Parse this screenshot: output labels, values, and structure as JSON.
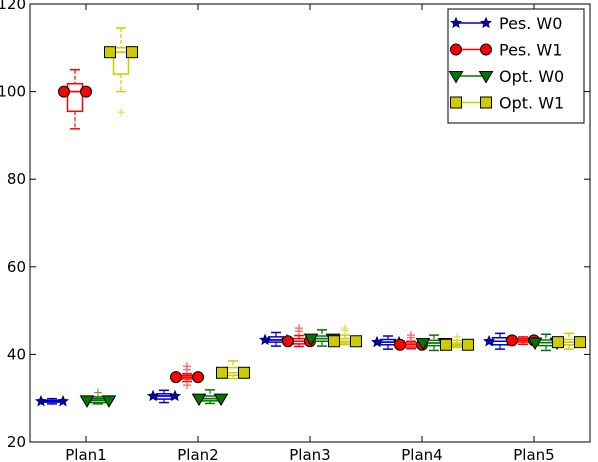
{
  "chart_data": {
    "type": "box",
    "categories": [
      "Plan1",
      "Plan2",
      "Plan3",
      "Plan4",
      "Plan5"
    ],
    "ylim": [
      20,
      120
    ],
    "yticks": [
      20,
      40,
      60,
      80,
      100,
      120
    ],
    "grid": false,
    "legend_position": "top-right",
    "series": [
      {
        "name": "Pes. W0",
        "color": "#0000cc",
        "marker": "star",
        "boxes": [
          {
            "whislo": 28.7,
            "q1": 29.1,
            "med": 29.3,
            "q3": 29.5,
            "whishi": 29.9,
            "fliers": []
          },
          {
            "whislo": 29.0,
            "q1": 29.8,
            "med": 30.5,
            "q3": 31.0,
            "whishi": 31.8,
            "fliers": []
          },
          {
            "whislo": 41.9,
            "q1": 42.8,
            "med": 43.3,
            "q3": 44.0,
            "whishi": 45.0,
            "fliers": []
          },
          {
            "whislo": 41.2,
            "q1": 42.2,
            "med": 42.8,
            "q3": 43.4,
            "whishi": 44.2,
            "fliers": []
          },
          {
            "whislo": 41.2,
            "q1": 42.2,
            "med": 43.0,
            "q3": 43.8,
            "whishi": 44.8,
            "fliers": []
          }
        ],
        "means": [
          29.3,
          30.5,
          43.3,
          42.8,
          43.0
        ]
      },
      {
        "name": "Pes. W1",
        "color": "#ff0000",
        "marker": "circle",
        "boxes": [
          {
            "whislo": 91.5,
            "q1": 95.5,
            "med": 100.0,
            "q3": 101.8,
            "whishi": 105.0,
            "fliers": []
          },
          {
            "whislo": 33.8,
            "q1": 34.4,
            "med": 34.8,
            "q3": 35.2,
            "whishi": 35.6,
            "fliers": [
              33.0,
              36.5,
              37.3
            ]
          },
          {
            "whislo": 41.8,
            "q1": 42.4,
            "med": 43.0,
            "q3": 43.6,
            "whishi": 44.3,
            "fliers": [
              45.3,
              46.0
            ]
          },
          {
            "whislo": 41.3,
            "q1": 41.7,
            "med": 42.2,
            "q3": 42.6,
            "whishi": 43.0,
            "fliers": [
              43.8,
              44.4
            ]
          },
          {
            "whislo": 42.3,
            "q1": 42.8,
            "med": 43.2,
            "q3": 43.6,
            "whishi": 44.0,
            "fliers": []
          }
        ],
        "means": [
          100.0,
          34.8,
          43.0,
          42.2,
          43.2
        ]
      },
      {
        "name": "Opt. W0",
        "color": "#007700",
        "marker": "triangle-down",
        "boxes": [
          {
            "whislo": 28.7,
            "q1": 29.0,
            "med": 29.5,
            "q3": 29.9,
            "whishi": 30.3,
            "fliers": [
              31.3
            ]
          },
          {
            "whislo": 28.8,
            "q1": 29.4,
            "med": 29.9,
            "q3": 30.5,
            "whishi": 31.9,
            "fliers": []
          },
          {
            "whislo": 41.9,
            "q1": 43.0,
            "med": 43.6,
            "q3": 44.2,
            "whishi": 45.6,
            "fliers": []
          },
          {
            "whislo": 40.9,
            "q1": 42.0,
            "med": 42.6,
            "q3": 43.2,
            "whishi": 44.4,
            "fliers": []
          },
          {
            "whislo": 40.9,
            "q1": 42.0,
            "med": 42.7,
            "q3": 43.3,
            "whishi": 44.6,
            "fliers": []
          }
        ],
        "means": [
          29.5,
          29.9,
          43.6,
          42.6,
          42.7
        ]
      },
      {
        "name": "Opt. W1",
        "color": "#cccc00",
        "marker": "square",
        "boxes": [
          {
            "whislo": 100.0,
            "q1": 104.0,
            "med": 109.0,
            "q3": 110.0,
            "whishi": 114.5,
            "fliers": [
              95.3
            ]
          },
          {
            "whislo": 34.5,
            "q1": 35.2,
            "med": 35.8,
            "q3": 37.0,
            "whishi": 38.5,
            "fliers": []
          },
          {
            "whislo": 42.2,
            "q1": 42.6,
            "med": 43.0,
            "q3": 43.6,
            "whishi": 44.4,
            "fliers": [
              45.5,
              46.0
            ]
          },
          {
            "whislo": 41.6,
            "q1": 41.9,
            "med": 42.2,
            "q3": 42.6,
            "whishi": 43.2,
            "fliers": [
              44.0
            ]
          },
          {
            "whislo": 41.2,
            "q1": 42.2,
            "med": 42.8,
            "q3": 43.4,
            "whishi": 44.8,
            "fliers": []
          }
        ],
        "means": [
          109.0,
          35.8,
          43.0,
          42.2,
          42.8
        ]
      }
    ]
  }
}
